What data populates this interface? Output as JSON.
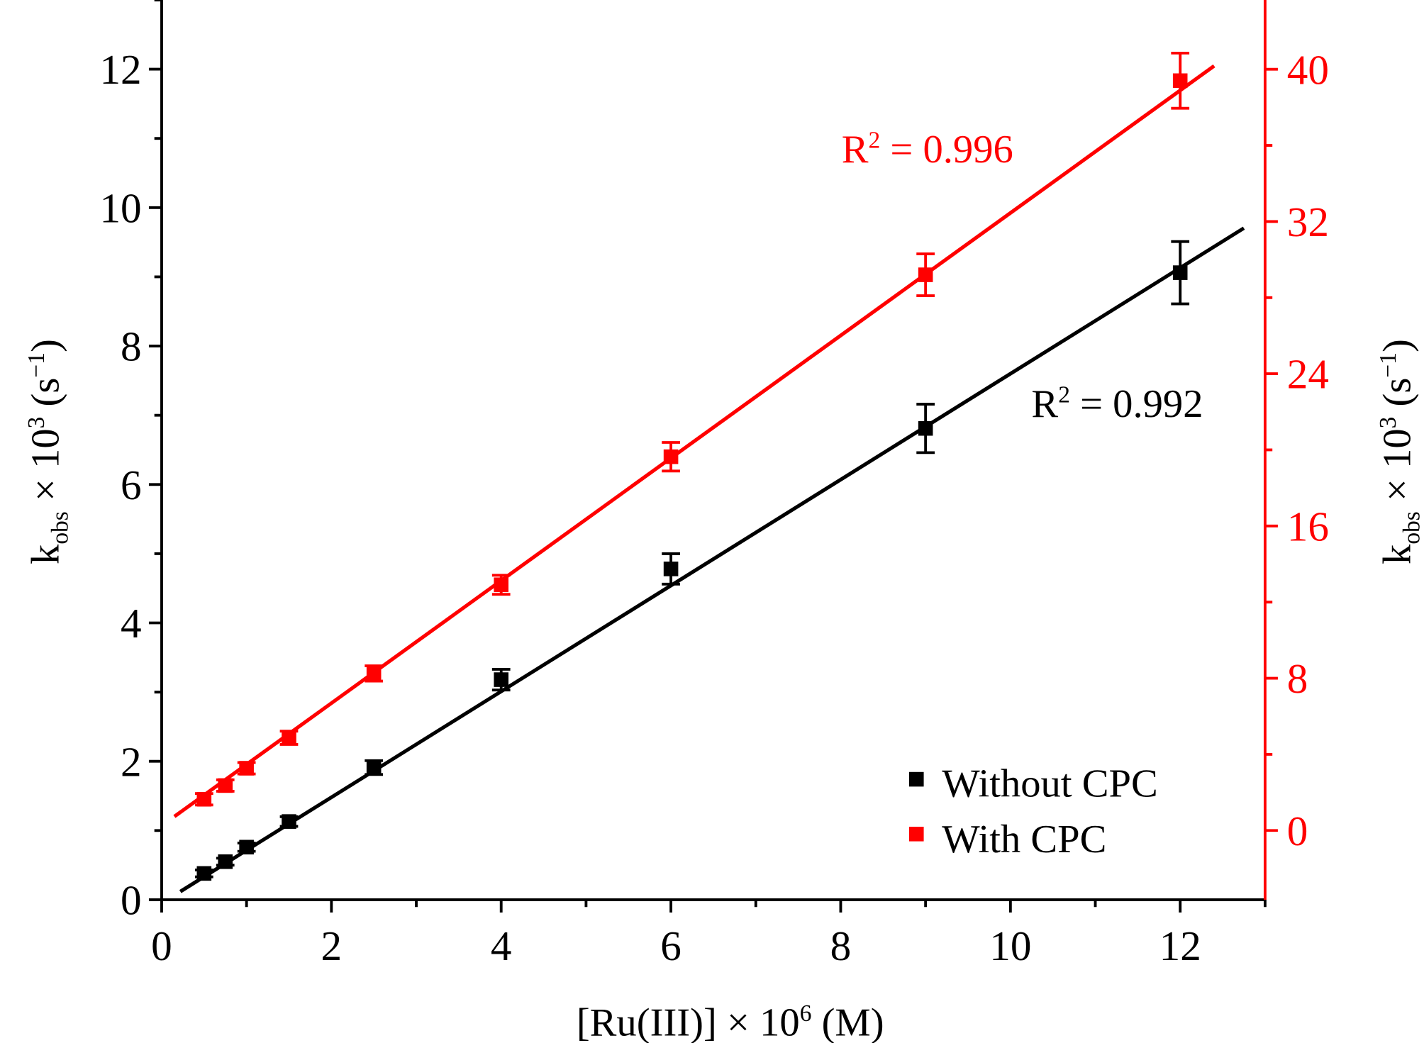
{
  "chart_data": {
    "type": "scatter",
    "xlabel": {
      "main": "[Ru(III)] × 10",
      "sup": "6",
      "tail": " (M)"
    },
    "ylabel_left": {
      "k": "k",
      "sub": "obs",
      "mid": " × 10",
      "sup": "3",
      "tail1": " (s",
      "sup2": "−1",
      "tail2": ")"
    },
    "ylabel_right": {
      "k": "k",
      "sub": "obs",
      "mid": " × 10",
      "sup": "3",
      "tail1": " (s",
      "sup2": "−1",
      "tail2": ")"
    },
    "xlim": [
      0,
      13
    ],
    "ylim_left": [
      0,
      13
    ],
    "ylim_right": [
      -3.64,
      43.64
    ],
    "x_ticks": [
      0,
      2,
      4,
      6,
      8,
      10,
      12
    ],
    "y_left_ticks": [
      0,
      2,
      4,
      6,
      8,
      10,
      12
    ],
    "y_right_ticks": [
      0,
      8,
      16,
      24,
      32,
      40
    ],
    "grid": false,
    "legend_position": "bottom-right",
    "colors": {
      "without": "#000000",
      "with": "#ff0000"
    },
    "series": [
      {
        "name": "Without CPC",
        "axis": "left",
        "x": [
          0.5,
          0.75,
          1.0,
          1.5,
          2.5,
          4,
          6,
          9,
          12
        ],
        "y": [
          0.38,
          0.55,
          0.76,
          1.13,
          1.91,
          3.18,
          4.78,
          6.81,
          9.06
        ],
        "err": [
          0.05,
          0.05,
          0.06,
          0.07,
          0.1,
          0.15,
          0.22,
          0.35,
          0.45
        ],
        "fit": {
          "slope": 0.765,
          "intercept": -0.05,
          "x_range": [
            0.22,
            12.75
          ],
          "r2_label": "R",
          "r2_sup": "2",
          "r2_value": " = 0.992"
        }
      },
      {
        "name": "With CPC",
        "axis": "right",
        "x": [
          0.5,
          0.75,
          1.0,
          1.5,
          2.5,
          4,
          6,
          9,
          12
        ],
        "y": [
          1.64,
          2.36,
          3.27,
          4.87,
          8.25,
          12.91,
          19.64,
          29.2,
          39.4
        ],
        "err": [
          0.3,
          0.3,
          0.3,
          0.35,
          0.4,
          0.5,
          0.75,
          1.1,
          1.45
        ],
        "fit": {
          "slope": 3.22,
          "intercept": 0.25,
          "x_range": [
            0.15,
            12.4
          ],
          "r2_label": "R",
          "r2_sup": "2",
          "r2_value": " = 0.996"
        }
      }
    ]
  }
}
